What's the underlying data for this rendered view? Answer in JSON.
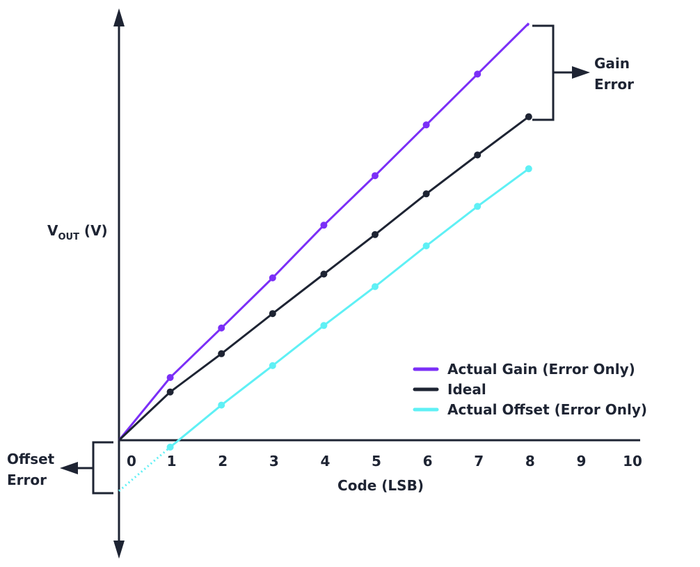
{
  "chart_data": {
    "type": "line",
    "xlabel": "Code (LSB)",
    "ylabel": {
      "main": "V",
      "subscript": "OUT",
      "suffix": " (V)"
    },
    "x_ticks": [
      "0",
      "1",
      "2",
      "3",
      "4",
      "5",
      "6",
      "7",
      "8",
      "9",
      "10"
    ],
    "xlim": [
      0,
      10
    ],
    "ylim": [
      -0.9,
      7.3
    ],
    "grid": false,
    "legend_position": "lower-right",
    "series": [
      {
        "name": "Actual Gain (Error Only)",
        "color": "#7b2ff7",
        "x": [
          0,
          1,
          2,
          3,
          4,
          5,
          6,
          7,
          8
        ],
        "y": [
          0,
          1.0,
          1.79,
          2.59,
          3.43,
          4.22,
          5.03,
          5.84,
          6.65
        ],
        "line_from_x": 0,
        "line_to_x": 8
      },
      {
        "name": "Ideal",
        "color": "#1e2433",
        "x": [
          0,
          1,
          2,
          3,
          4,
          5,
          6,
          7,
          8
        ],
        "y": [
          0,
          0.77,
          1.38,
          2.02,
          2.65,
          3.28,
          3.93,
          4.55,
          5.16
        ],
        "line_from_x": 0,
        "line_to_x": 8
      },
      {
        "name": "Actual Offset (Error Only)",
        "color": "#5ff0f5",
        "x": [
          1,
          2,
          3,
          4,
          5,
          6,
          7,
          8
        ],
        "y": [
          -0.11,
          0.56,
          1.19,
          1.83,
          2.45,
          3.1,
          3.73,
          4.33
        ],
        "extension": {
          "x": [
            0,
            1
          ],
          "y": [
            -0.81,
            -0.11
          ],
          "style": "dotted"
        },
        "line_from_x": 1,
        "line_to_x": 8
      }
    ],
    "annotations": [
      {
        "text_lines": [
          "Gain",
          "Error"
        ],
        "type": "bracket",
        "from": "Actual Gain at 8",
        "to": "Ideal at 8"
      },
      {
        "text_lines": [
          "Offset",
          "Error"
        ],
        "type": "bracket",
        "from": "0",
        "to": "Actual Offset intercept at 0"
      }
    ]
  }
}
